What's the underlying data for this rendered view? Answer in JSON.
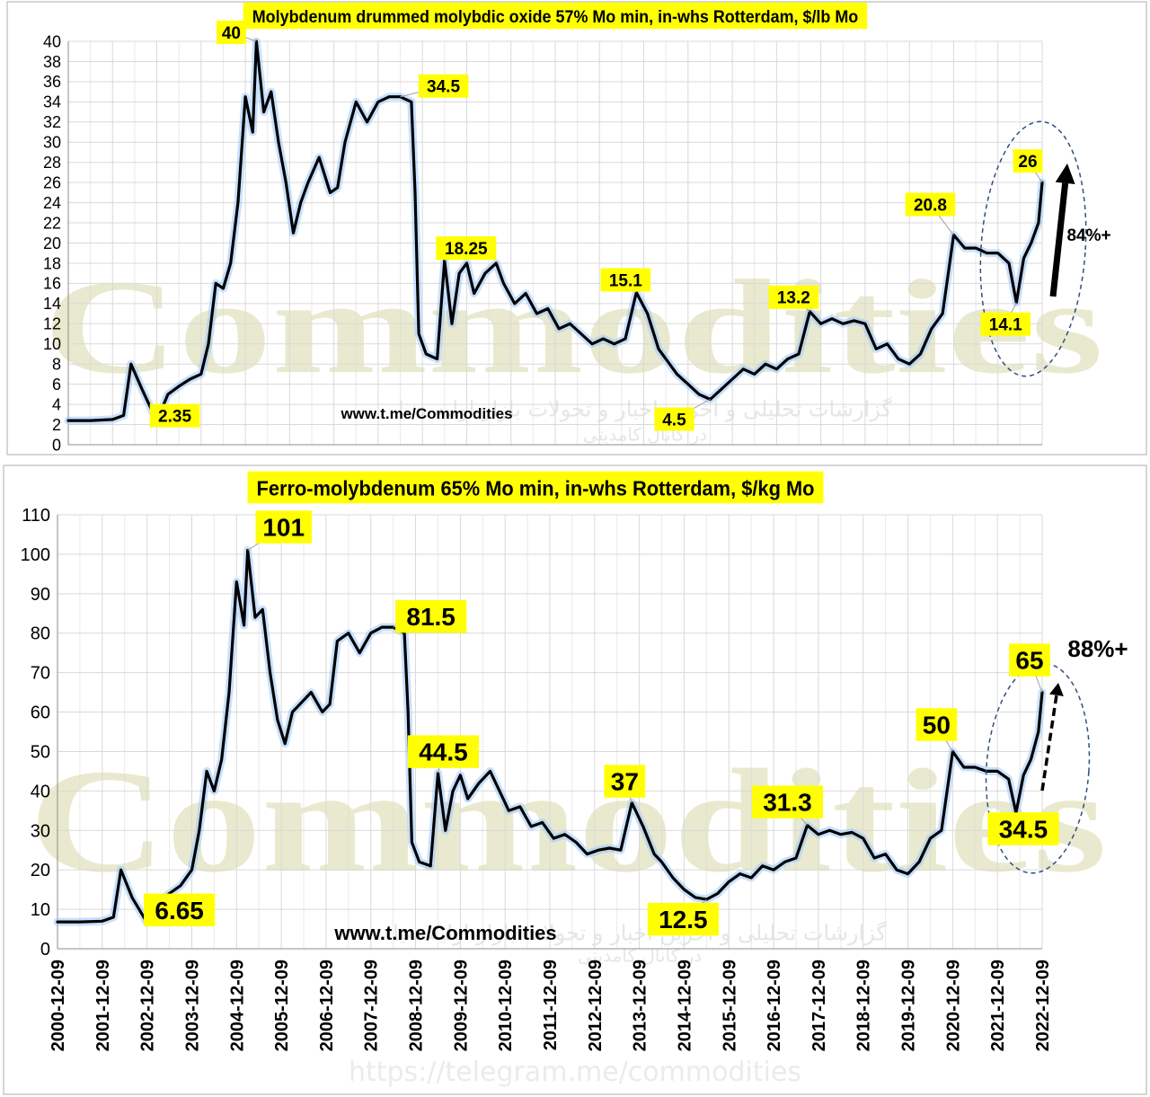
{
  "watermark": {
    "brand": "Commodities",
    "persian_top": "گزارشات تحلیلی و آخرین اخبار و تحولات بازار اولیه دنیا",
    "persian_bottom": "در کانال کامدیتی",
    "telegram_url": "https://telegram.me/commodities"
  },
  "chart_data": [
    {
      "type": "line",
      "title": "Molybdenum drummed molybdic oxide 57% Mo min, in-whs Rotterdam, $/lb Mo",
      "source_label": "www.t.me/Commodities",
      "ylim": [
        0,
        40
      ],
      "yticks": [
        0,
        2,
        4,
        6,
        8,
        10,
        12,
        14,
        16,
        18,
        20,
        22,
        24,
        26,
        28,
        30,
        32,
        34,
        36,
        38,
        40
      ],
      "xlim": [
        "2000-12-09",
        "2022-12-09"
      ],
      "grid": true,
      "legend": "none",
      "series_color": "#000000",
      "series": [
        {
          "x": [
            "2000-12",
            "2001-06",
            "2001-12",
            "2002-03",
            "2002-05",
            "2002-08",
            "2002-12",
            "2003-03",
            "2003-06",
            "2003-09",
            "2003-12",
            "2004-02",
            "2004-04",
            "2004-06",
            "2004-08",
            "2004-10",
            "2004-12",
            "2005-02",
            "2005-03",
            "2005-05",
            "2005-07",
            "2005-09",
            "2005-11",
            "2006-01",
            "2006-03",
            "2006-05",
            "2006-08",
            "2006-11",
            "2007-01",
            "2007-03",
            "2007-06",
            "2007-09",
            "2007-12",
            "2008-03",
            "2008-06",
            "2008-09",
            "2008-10",
            "2008-11",
            "2009-01",
            "2009-04",
            "2009-06",
            "2009-08",
            "2009-10",
            "2009-12",
            "2010-02",
            "2010-05",
            "2010-08",
            "2010-10",
            "2011-01",
            "2011-04",
            "2011-07",
            "2011-10",
            "2012-01",
            "2012-04",
            "2012-07",
            "2012-10",
            "2013-01",
            "2013-04",
            "2013-07",
            "2013-10",
            "2014-01",
            "2014-04",
            "2014-06",
            "2014-09",
            "2014-12",
            "2015-03",
            "2015-06",
            "2015-09",
            "2015-12",
            "2016-03",
            "2016-06",
            "2016-09",
            "2016-12",
            "2017-03",
            "2017-06",
            "2017-09",
            "2017-12",
            "2018-03",
            "2018-06",
            "2018-09",
            "2018-12",
            "2019-03",
            "2019-06",
            "2019-09",
            "2019-12",
            "2020-03",
            "2020-06",
            "2020-09",
            "2020-12",
            "2021-03",
            "2021-06",
            "2021-09",
            "2021-12",
            "2022-03",
            "2022-05",
            "2022-07",
            "2022-09",
            "2022-11",
            "2022-12"
          ],
          "y": [
            2.4,
            2.4,
            2.5,
            2.9,
            8.0,
            5.5,
            2.35,
            5.0,
            5.8,
            6.5,
            7.0,
            10.0,
            16.0,
            15.5,
            18.0,
            24.0,
            34.5,
            31.0,
            40.0,
            33.0,
            35.0,
            30.0,
            26.0,
            21.0,
            24.0,
            26.0,
            28.5,
            25.0,
            25.5,
            30.0,
            34.0,
            32.0,
            34.0,
            34.5,
            34.5,
            34.0,
            25.0,
            11.0,
            9.0,
            8.5,
            18.25,
            12.0,
            17.0,
            18.0,
            15.0,
            17.0,
            18.0,
            16.0,
            14.0,
            15.0,
            13.0,
            13.5,
            11.5,
            12.0,
            11.0,
            10.0,
            10.5,
            10.0,
            10.5,
            15.1,
            13.0,
            9.5,
            8.5,
            7.0,
            6.0,
            5.0,
            4.5,
            5.5,
            6.5,
            7.5,
            7.0,
            8.0,
            7.5,
            8.5,
            9.0,
            13.2,
            12.0,
            12.5,
            12.0,
            12.3,
            12.0,
            9.5,
            10.0,
            8.5,
            8.0,
            9.0,
            11.5,
            13.0,
            20.8,
            19.5,
            19.5,
            19.0,
            19.0,
            18.0,
            14.1,
            18.5,
            20.0,
            22.0,
            26.0
          ]
        }
      ],
      "annotations": [
        {
          "label": "40",
          "x": "2005-03",
          "y": 40
        },
        {
          "label": "34.5",
          "x": "2008-06",
          "y": 34.5
        },
        {
          "label": "18.25",
          "x": "2009-06",
          "y": 18.25
        },
        {
          "label": "15.1",
          "x": "2013-10",
          "y": 15.1
        },
        {
          "label": "13.2",
          "x": "2017-09",
          "y": 13.2
        },
        {
          "label": "20.8",
          "x": "2020-12",
          "y": 20.8
        },
        {
          "label": "26",
          "x": "2022-12",
          "y": 26
        },
        {
          "label": "14.1",
          "x": "2022-05",
          "y": 14.1
        },
        {
          "label": "4.5",
          "x": "2015-06",
          "y": 4.5
        },
        {
          "label": "2.35",
          "x": "2002-12",
          "y": 2.35
        }
      ],
      "change_label": "84%+"
    },
    {
      "type": "line",
      "title": "Ferro-molybdenum 65% Mo min, in-whs Rotterdam, $/kg Mo",
      "source_label": "www.t.me/Commodities",
      "ylim": [
        0,
        110
      ],
      "yticks": [
        0,
        10,
        20,
        30,
        40,
        50,
        60,
        70,
        80,
        90,
        100,
        110
      ],
      "xlim": [
        "2000-12-09",
        "2022-12-09"
      ],
      "x_tick_labels": [
        "2000-12-09",
        "2001-12-09",
        "2002-12-09",
        "2003-12-09",
        "2004-12-09",
        "2005-12-09",
        "2006-12-09",
        "2007-12-09",
        "2008-12-09",
        "2009-12-09",
        "2010-12-09",
        "2011-12-09",
        "2012-12-09",
        "2013-12-09",
        "2014-12-09",
        "2015-12-09",
        "2016-12-09",
        "2017-12-09",
        "2018-12-09",
        "2019-12-09",
        "2020-12-09",
        "2021-12-09",
        "2022-12-09"
      ],
      "grid": true,
      "legend": "none",
      "series_color": "#000000",
      "series": [
        {
          "x": [
            "2000-12",
            "2001-06",
            "2001-12",
            "2002-03",
            "2002-05",
            "2002-08",
            "2002-12",
            "2003-03",
            "2003-06",
            "2003-09",
            "2003-12",
            "2004-02",
            "2004-04",
            "2004-06",
            "2004-08",
            "2004-10",
            "2004-12",
            "2005-02",
            "2005-03",
            "2005-05",
            "2005-07",
            "2005-09",
            "2005-11",
            "2006-01",
            "2006-03",
            "2006-05",
            "2006-08",
            "2006-11",
            "2007-01",
            "2007-03",
            "2007-06",
            "2007-09",
            "2007-12",
            "2008-03",
            "2008-06",
            "2008-09",
            "2008-10",
            "2008-11",
            "2009-01",
            "2009-04",
            "2009-06",
            "2009-08",
            "2009-10",
            "2009-12",
            "2010-02",
            "2010-05",
            "2010-08",
            "2010-10",
            "2011-01",
            "2011-04",
            "2011-07",
            "2011-10",
            "2012-01",
            "2012-04",
            "2012-07",
            "2012-10",
            "2013-01",
            "2013-04",
            "2013-07",
            "2013-10",
            "2014-01",
            "2014-04",
            "2014-06",
            "2014-09",
            "2014-12",
            "2015-03",
            "2015-06",
            "2015-09",
            "2015-12",
            "2016-03",
            "2016-06",
            "2016-09",
            "2016-12",
            "2017-03",
            "2017-06",
            "2017-09",
            "2017-12",
            "2018-03",
            "2018-06",
            "2018-09",
            "2018-12",
            "2019-03",
            "2019-06",
            "2019-09",
            "2019-12",
            "2020-03",
            "2020-06",
            "2020-09",
            "2020-12",
            "2021-03",
            "2021-06",
            "2021-09",
            "2021-12",
            "2022-03",
            "2022-05",
            "2022-07",
            "2022-09",
            "2022-11",
            "2022-12"
          ],
          "y": [
            6.8,
            6.8,
            7.0,
            8.0,
            20.0,
            13.0,
            6.65,
            12.0,
            14.0,
            16.0,
            20.0,
            30.0,
            45.0,
            40.0,
            48.0,
            65.0,
            93.0,
            82.0,
            101.0,
            84.0,
            86.0,
            70.0,
            58.0,
            52.0,
            60.0,
            62.0,
            65.0,
            60.0,
            62.0,
            78.0,
            80.0,
            75.0,
            80.0,
            81.5,
            81.5,
            80.0,
            60.0,
            27.0,
            22.0,
            21.0,
            44.5,
            30.0,
            40.0,
            44.0,
            38.0,
            42.0,
            45.0,
            41.0,
            35.0,
            36.0,
            31.0,
            32.0,
            28.0,
            29.0,
            27.0,
            24.0,
            25.0,
            25.5,
            25.0,
            37.0,
            31.0,
            24.0,
            22.0,
            18.0,
            15.0,
            13.0,
            12.5,
            14.0,
            17.0,
            19.0,
            18.0,
            21.0,
            20.0,
            22.0,
            23.0,
            31.3,
            29.0,
            30.0,
            29.0,
            29.5,
            28.0,
            23.0,
            24.0,
            20.0,
            19.0,
            22.0,
            28.0,
            30.0,
            50.0,
            46.0,
            46.0,
            45.0,
            45.0,
            43.0,
            34.5,
            44.0,
            48.0,
            55.0,
            65.0
          ]
        }
      ],
      "annotations": [
        {
          "label": "101",
          "x": "2005-03",
          "y": 101
        },
        {
          "label": "81.5",
          "x": "2008-06",
          "y": 81.5
        },
        {
          "label": "44.5",
          "x": "2009-06",
          "y": 44.5
        },
        {
          "label": "37",
          "x": "2013-10",
          "y": 37
        },
        {
          "label": "31.3",
          "x": "2017-09",
          "y": 31.3
        },
        {
          "label": "50",
          "x": "2020-12",
          "y": 50
        },
        {
          "label": "65",
          "x": "2022-12",
          "y": 65
        },
        {
          "label": "34.5",
          "x": "2022-05",
          "y": 34.5
        },
        {
          "label": "12.5",
          "x": "2015-06",
          "y": 12.5
        },
        {
          "label": "6.65",
          "x": "2002-12",
          "y": 6.65
        }
      ],
      "change_label": "88%+"
    }
  ]
}
